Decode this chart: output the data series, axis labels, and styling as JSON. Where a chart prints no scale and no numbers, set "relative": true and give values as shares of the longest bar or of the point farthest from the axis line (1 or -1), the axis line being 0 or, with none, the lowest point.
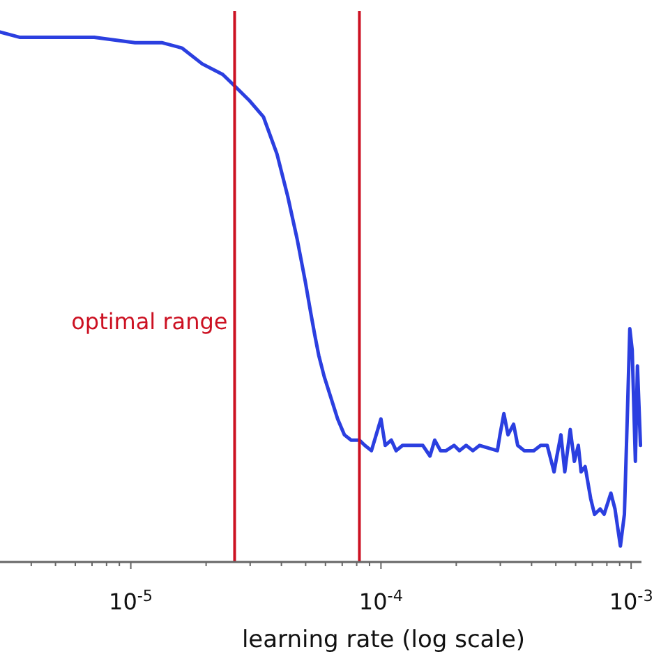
{
  "chart_data": {
    "type": "line",
    "xlabel": "learning rate (log scale)",
    "log": "x",
    "relative": true,
    "grid": false,
    "xlim": [
      3e-06,
      0.0011
    ],
    "xticks": [
      {
        "value": 4e-06,
        "label": null
      },
      {
        "value": 5e-06,
        "label": null
      },
      {
        "value": 6e-06,
        "label": null
      },
      {
        "value": 7e-06,
        "label": null
      },
      {
        "value": 8e-06,
        "label": null
      },
      {
        "value": 9e-06,
        "label": null
      },
      {
        "value": 1e-05,
        "label": "10$^{-5}$"
      },
      {
        "value": 2e-05,
        "label": null
      },
      {
        "value": 3e-05,
        "label": null
      },
      {
        "value": 4e-05,
        "label": null
      },
      {
        "value": 5e-05,
        "label": null
      },
      {
        "value": 6e-05,
        "label": null
      },
      {
        "value": 7e-05,
        "label": null
      },
      {
        "value": 8e-05,
        "label": null
      },
      {
        "value": 9e-05,
        "label": null
      },
      {
        "value": 0.0001,
        "label": "10$^{-4}$"
      },
      {
        "value": 0.0002,
        "label": null
      },
      {
        "value": 0.0003,
        "label": null
      },
      {
        "value": 0.0004,
        "label": null
      },
      {
        "value": 0.0005,
        "label": null
      },
      {
        "value": 0.0006,
        "label": null
      },
      {
        "value": 0.0007,
        "label": null
      },
      {
        "value": 0.0008,
        "label": null
      },
      {
        "value": 0.0009,
        "label": null
      },
      {
        "value": 0.001,
        "label": "10$^{-3}$"
      }
    ],
    "ref_lines": [
      {
        "axis": "x",
        "value": 2.6e-05,
        "label": "optimal range",
        "color": "#cc1122"
      },
      {
        "axis": "x",
        "value": 8.2e-05,
        "color": "#cc1122"
      }
    ],
    "series": [
      {
        "color": "#2b3fe0",
        "line_style": "solid",
        "marker": "none",
        "x": [
          3e-06,
          3.61e-06,
          5.23e-06,
          7.14e-06,
          1.04e-05,
          1.33e-05,
          1.6e-05,
          1.93e-05,
          2.33e-05,
          2.58e-05,
          2.99e-05,
          3.39e-05,
          3.84e-05,
          4.24e-05,
          4.62e-05,
          4.98e-05,
          5.24e-05,
          5.43e-05,
          5.64e-05,
          5.93e-05,
          6.31e-05,
          6.71e-05,
          7.14e-05,
          7.6e-05,
          8.2e-05,
          8.62e-05,
          9.16e-05,
          0.0001,
          0.000104,
          0.00011,
          0.000115,
          0.000122,
          0.00013,
          0.000142,
          0.000147,
          0.000157,
          0.000164,
          0.000173,
          0.000182,
          0.000196,
          0.000206,
          0.000219,
          0.000233,
          0.000248,
          0.000292,
          0.000299,
          0.00031,
          0.000322,
          0.000339,
          0.000352,
          0.000374,
          0.000408,
          0.000435,
          0.000462,
          0.000492,
          0.000505,
          0.000524,
          0.000543,
          0.000571,
          0.000593,
          0.000615,
          0.000631,
          0.000655,
          0.000689,
          0.000714,
          0.000752,
          0.00078,
          0.00083,
          0.000862,
          0.000906,
          0.00094,
          0.000965,
          0.000988,
          0.00101,
          0.00104,
          0.00106,
          0.00109
        ],
        "values": [
          1,
          0.99,
          0.99,
          0.99,
          0.98,
          0.98,
          0.97,
          0.94,
          0.92,
          0.9,
          0.87,
          0.84,
          0.77,
          0.69,
          0.61,
          0.53,
          0.47,
          0.43,
          0.39,
          0.35,
          0.31,
          0.27,
          0.24,
          0.23,
          0.23,
          0.22,
          0.21,
          0.27,
          0.22,
          0.23,
          0.21,
          0.22,
          0.22,
          0.22,
          0.22,
          0.2,
          0.23,
          0.21,
          0.21,
          0.22,
          0.21,
          0.22,
          0.21,
          0.22,
          0.21,
          0.24,
          0.28,
          0.24,
          0.26,
          0.22,
          0.21,
          0.21,
          0.22,
          0.22,
          0.17,
          0.2,
          0.24,
          0.17,
          0.25,
          0.19,
          0.22,
          0.17,
          0.18,
          0.12,
          0.09,
          0.1,
          0.09,
          0.13,
          0.1,
          0.03,
          0.09,
          0.27,
          0.44,
          0.4,
          0.19,
          0.37,
          0.22
        ]
      }
    ]
  }
}
